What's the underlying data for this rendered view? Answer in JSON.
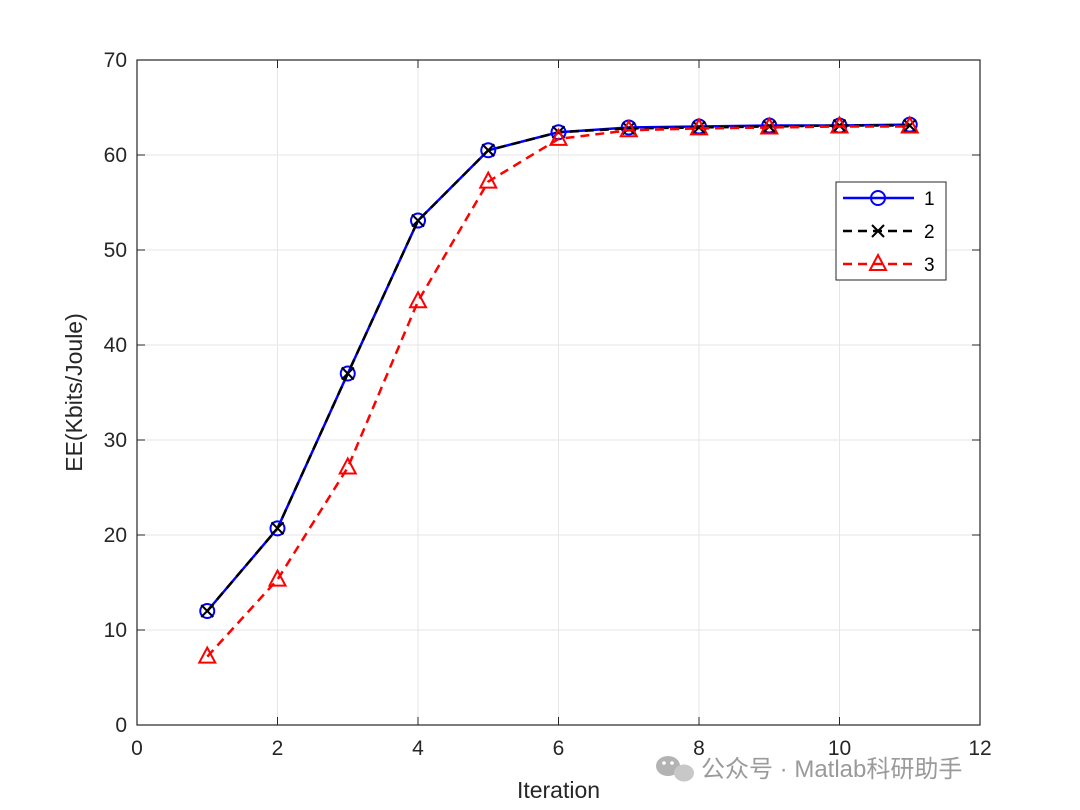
{
  "chart_data": {
    "type": "line",
    "title": "",
    "xlabel": "Iteration",
    "ylabel": "EE(Kbits/Joule)",
    "xlim": [
      0,
      12
    ],
    "ylim": [
      0,
      70
    ],
    "xticks": [
      0,
      2,
      4,
      6,
      8,
      10,
      12
    ],
    "yticks": [
      0,
      10,
      20,
      30,
      40,
      50,
      60,
      70
    ],
    "grid": true,
    "legend_position": "right",
    "x": [
      1,
      2,
      3,
      4,
      5,
      6,
      7,
      8,
      9,
      10,
      11
    ],
    "series": [
      {
        "name": "1",
        "values": [
          12.0,
          20.7,
          37.0,
          53.1,
          60.5,
          62.4,
          62.9,
          63.0,
          63.1,
          63.1,
          63.2
        ],
        "color": "#0000ff",
        "line_style": "solid",
        "marker": "circle"
      },
      {
        "name": "2",
        "values": [
          12.0,
          20.7,
          37.0,
          53.1,
          60.5,
          62.4,
          62.8,
          62.9,
          63.0,
          63.1,
          63.1
        ],
        "color": "#000000",
        "line_style": "dashed",
        "marker": "x"
      },
      {
        "name": "3",
        "values": [
          7.2,
          15.3,
          27.1,
          44.6,
          57.2,
          61.7,
          62.6,
          62.8,
          62.9,
          63.0,
          63.0
        ],
        "color": "#ff0000",
        "line_style": "dashed",
        "marker": "triangle"
      }
    ]
  },
  "watermark": {
    "text": "公众号 · Matlab科研助手",
    "icon": "wechat-icon"
  }
}
